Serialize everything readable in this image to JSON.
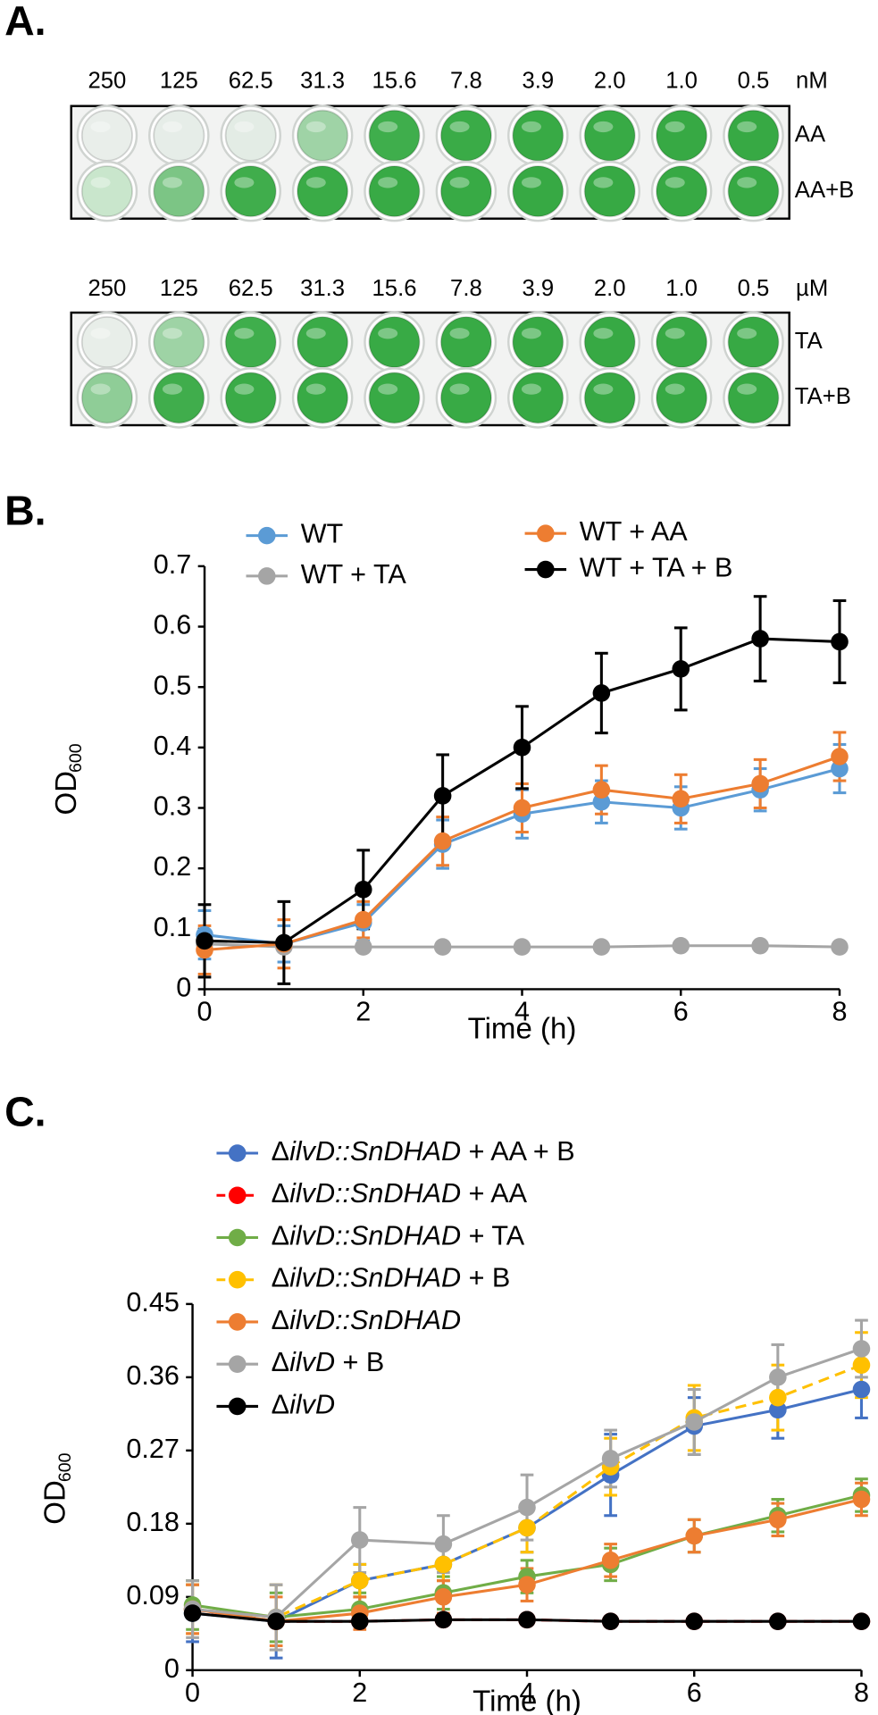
{
  "panel_labels": [
    "A.",
    "B.",
    "C."
  ],
  "plates": [
    {
      "concentrations": [
        "250",
        "125",
        "62.5",
        "31.3",
        "15.6",
        "7.8",
        "3.9",
        "2.0",
        "1.0",
        "0.5"
      ],
      "unit": "nM",
      "rows": [
        {
          "name": "AA",
          "well_colors": [
            "#e9eeea",
            "#e6ede8",
            "#e3ece5",
            "#9fd3a6",
            "#3fae4c",
            "#3aab47",
            "#38aa45",
            "#38aa45",
            "#37a944",
            "#37a944"
          ]
        },
        {
          "name": "AA+B",
          "well_colors": [
            "#c9e6cc",
            "#7cc585",
            "#40ad4c",
            "#3aab47",
            "#38aa45",
            "#38aa45",
            "#37a944",
            "#37a944",
            "#37a944",
            "#37a944"
          ]
        }
      ]
    },
    {
      "concentrations": [
        "250",
        "125",
        "62.5",
        "31.3",
        "15.6",
        "7.8",
        "3.9",
        "2.0",
        "1.0",
        "0.5"
      ],
      "unit": "µM",
      "rows": [
        {
          "name": "TA",
          "well_colors": [
            "#e8eee9",
            "#9ed3a5",
            "#3fae4c",
            "#3aab47",
            "#38aa45",
            "#38aa45",
            "#37a944",
            "#37a944",
            "#37a944",
            "#37a944"
          ]
        },
        {
          "name": "TA+B",
          "well_colors": [
            "#8fcd97",
            "#40ad4c",
            "#3aab47",
            "#38aa45",
            "#38aa45",
            "#38aa45",
            "#37a944",
            "#37a944",
            "#37a944",
            "#37a944"
          ]
        }
      ]
    }
  ],
  "chart_data": [
    {
      "type": "line",
      "x_label": "Time (h)",
      "y_label": "OD",
      "y_label_sub": "600",
      "x": [
        0,
        1,
        2,
        3,
        4,
        5,
        6,
        7,
        8
      ],
      "xlim": [
        0,
        8
      ],
      "xticks": [
        0,
        2,
        4,
        6,
        8
      ],
      "ylim": [
        0,
        0.7
      ],
      "yticks": [
        0,
        0.1,
        0.2,
        0.3,
        0.4,
        0.5,
        0.6,
        0.7
      ],
      "series": [
        {
          "name": "WT",
          "color": "#5b9bd5",
          "values": [
            0.09,
            0.075,
            0.11,
            0.24,
            0.29,
            0.31,
            0.3,
            0.33,
            0.365
          ],
          "errors": [
            0.04,
            0.03,
            0.03,
            0.04,
            0.04,
            0.035,
            0.035,
            0.035,
            0.04
          ]
        },
        {
          "name": "WT + TA",
          "color": "#a5a5a5",
          "values": [
            0.075,
            0.07,
            0.07,
            0.07,
            0.07,
            0.07,
            0.072,
            0.072,
            0.07
          ],
          "errors": [
            0.005,
            0.005,
            0.005,
            0.005,
            0.005,
            0.005,
            0.005,
            0.005,
            0.005
          ]
        },
        {
          "name": "WT + AA",
          "color": "#ed7d31",
          "values": [
            0.065,
            0.075,
            0.115,
            0.245,
            0.3,
            0.33,
            0.315,
            0.34,
            0.385
          ],
          "errors": [
            0.04,
            0.04,
            0.03,
            0.04,
            0.04,
            0.04,
            0.04,
            0.04,
            0.04
          ]
        },
        {
          "name": "WT + TA + B",
          "color": "#000000",
          "values": [
            0.08,
            0.077,
            0.165,
            0.32,
            0.4,
            0.49,
            0.53,
            0.58,
            0.575
          ],
          "errors": [
            0.06,
            0.068,
            0.065,
            0.068,
            0.068,
            0.066,
            0.068,
            0.07,
            0.068
          ]
        }
      ]
    },
    {
      "type": "line",
      "x_label": "Time (h)",
      "y_label": "OD",
      "y_label_sub": "600",
      "x": [
        0,
        1,
        2,
        3,
        4,
        5,
        6,
        7,
        8
      ],
      "xlim": [
        0,
        8
      ],
      "xticks": [
        0,
        2,
        4,
        6,
        8
      ],
      "ylim": [
        0,
        0.45
      ],
      "yticks": [
        0,
        0.09,
        0.18,
        0.27,
        0.36,
        0.45
      ],
      "series": [
        {
          "name": "ΔilvD::SnDHAD + AA + B",
          "color": "#4472c4",
          "dashed": false,
          "values": [
            0.07,
            0.06,
            0.11,
            0.13,
            0.175,
            0.24,
            0.3,
            0.32,
            0.345
          ],
          "errors": [
            0.035,
            0.045,
            0.02,
            0.02,
            0.03,
            0.05,
            0.035,
            0.035,
            0.035
          ]
        },
        {
          "name": "ΔilvD::SnDHAD + AA",
          "color": "#ff0000",
          "dashed": true,
          "values": [
            0.075,
            0.06,
            0.06,
            0.062,
            0.062,
            0.06,
            0.06,
            0.06,
            0.06
          ],
          "errors": [
            0.005,
            0.005,
            0.005,
            0.005,
            0.005,
            0.005,
            0.005,
            0.005,
            0.005
          ]
        },
        {
          "name": "ΔilvD::SnDHAD + TA",
          "color": "#70ad47",
          "dashed": false,
          "values": [
            0.08,
            0.065,
            0.075,
            0.095,
            0.115,
            0.13,
            0.165,
            0.19,
            0.215
          ],
          "errors": [
            0.03,
            0.03,
            0.02,
            0.02,
            0.02,
            0.02,
            0.02,
            0.02,
            0.02
          ]
        },
        {
          "name": "ΔilvD::SnDHAD + B",
          "color": "#ffc000",
          "dashed": true,
          "values": [
            0.075,
            0.065,
            0.11,
            0.13,
            0.175,
            0.25,
            0.31,
            0.335,
            0.375
          ],
          "errors": [
            0.03,
            0.04,
            0.02,
            0.02,
            0.03,
            0.035,
            0.04,
            0.04,
            0.04
          ]
        },
        {
          "name": "ΔilvD::SnDHAD",
          "color": "#ed7d31",
          "dashed": false,
          "values": [
            0.075,
            0.06,
            0.07,
            0.09,
            0.105,
            0.135,
            0.165,
            0.185,
            0.21
          ],
          "errors": [
            0.03,
            0.03,
            0.02,
            0.02,
            0.02,
            0.02,
            0.02,
            0.02,
            0.02
          ]
        },
        {
          "name": "ΔilvD + B",
          "color": "#a5a5a5",
          "dashed": false,
          "values": [
            0.075,
            0.065,
            0.16,
            0.155,
            0.2,
            0.26,
            0.305,
            0.36,
            0.395
          ],
          "errors": [
            0.035,
            0.04,
            0.04,
            0.035,
            0.04,
            0.035,
            0.04,
            0.04,
            0.035
          ]
        },
        {
          "name": "ΔilvD",
          "color": "#000000",
          "dashed": false,
          "values": [
            0.07,
            0.06,
            0.06,
            0.062,
            0.062,
            0.06,
            0.06,
            0.06,
            0.06
          ],
          "errors": [
            0.004,
            0.004,
            0.004,
            0.004,
            0.004,
            0.004,
            0.004,
            0.004,
            0.004
          ]
        }
      ]
    }
  ]
}
